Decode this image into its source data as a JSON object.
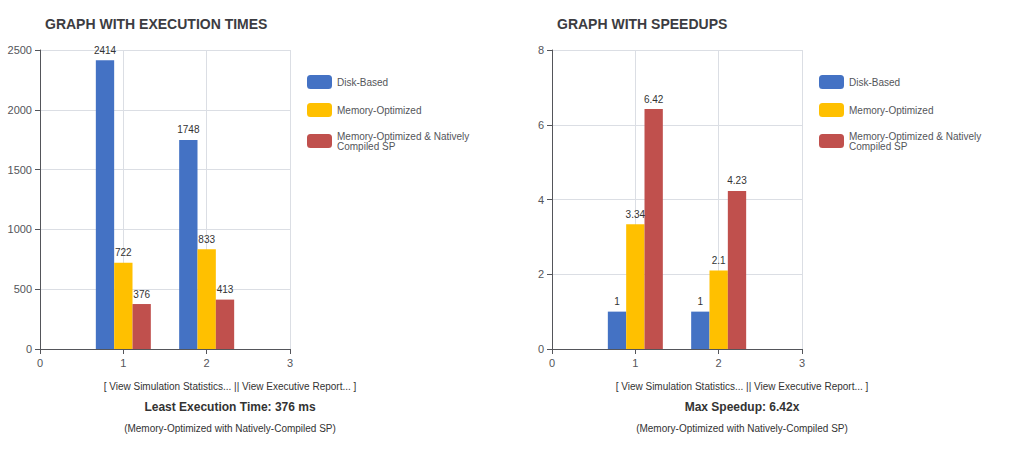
{
  "chart_data": [
    {
      "type": "bar",
      "title": "GRAPH WITH EXECUTION TIMES",
      "x": [
        1,
        2
      ],
      "series": [
        {
          "name": "Disk-Based",
          "color": "#4472C4",
          "values": [
            2414,
            1748
          ]
        },
        {
          "name": "Memory-Optimized",
          "color": "#FFC000",
          "values": [
            722,
            833
          ]
        },
        {
          "name": "Memory-Optimized & Natively\nCompiled SP",
          "color": "#C0504D",
          "values": [
            376,
            413
          ]
        }
      ],
      "xlim": [
        0,
        3
      ],
      "xticks": [
        0,
        1,
        2,
        3
      ],
      "ylim": [
        0,
        2500
      ],
      "yticks": [
        0,
        500,
        1000,
        1500,
        2000,
        2500
      ],
      "grid": true,
      "legend": "right",
      "data_labels": true,
      "annotations": [
        "[ View Simulation Statistics... || View Executive Report... ]",
        "Least Execution Time: 376 ms",
        "(Memory-Optimized with Natively-Compiled SP)"
      ]
    },
    {
      "type": "bar",
      "title": "GRAPH WITH SPEEDUPS",
      "x": [
        1,
        2
      ],
      "series": [
        {
          "name": "Disk-Based",
          "color": "#4472C4",
          "values": [
            1,
            1
          ]
        },
        {
          "name": "Memory-Optimized",
          "color": "#FFC000",
          "values": [
            3.34,
            2.1
          ]
        },
        {
          "name": "Memory-Optimized & Natively\nCompiled SP",
          "color": "#C0504D",
          "values": [
            6.42,
            4.23
          ]
        }
      ],
      "xlim": [
        0,
        3
      ],
      "xticks": [
        0,
        1,
        2,
        3
      ],
      "ylim": [
        0,
        8
      ],
      "yticks": [
        0,
        2,
        4,
        6,
        8
      ],
      "grid": true,
      "legend": "right",
      "data_labels": true,
      "annotations": [
        "[ View Simulation Statistics... || View Executive Report... ]",
        "Max Speedup: 6.42x",
        "(Memory-Optimized with Natively-Compiled SP)"
      ]
    }
  ]
}
